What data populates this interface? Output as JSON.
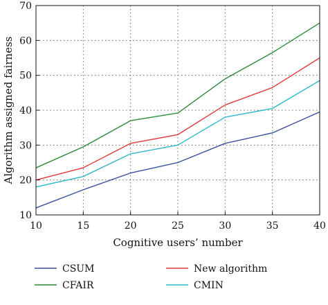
{
  "chart_data": {
    "type": "line",
    "xlabel": "Cognitive users’ number",
    "ylabel": "Algorithm assigned fairness",
    "xlim": [
      10,
      40
    ],
    "ylim": [
      10,
      70
    ],
    "x_ticks": [
      10,
      15,
      20,
      25,
      30,
      35,
      40
    ],
    "y_ticks": [
      10,
      20,
      30,
      40,
      50,
      60,
      70
    ],
    "grid": true,
    "legend_position": "bottom",
    "x": [
      10,
      15,
      20,
      25,
      30,
      35,
      40
    ],
    "series": [
      {
        "name": "CSUM",
        "color": "#3a4f9c",
        "values": [
          12,
          17.2,
          22,
          25,
          30.5,
          33.5,
          39.5
        ]
      },
      {
        "name": "CFAIR",
        "color": "#2a8a3a",
        "values": [
          23.5,
          29.5,
          37,
          39.2,
          49,
          56.5,
          65
        ]
      },
      {
        "name": "New algorithm",
        "color": "#e0383a",
        "values": [
          20,
          23.5,
          30.5,
          33,
          41.5,
          46.5,
          55
        ]
      },
      {
        "name": "CMIN",
        "color": "#2ab8c8",
        "values": [
          18,
          21,
          27.5,
          30,
          38,
          40.5,
          48.5
        ]
      }
    ]
  }
}
